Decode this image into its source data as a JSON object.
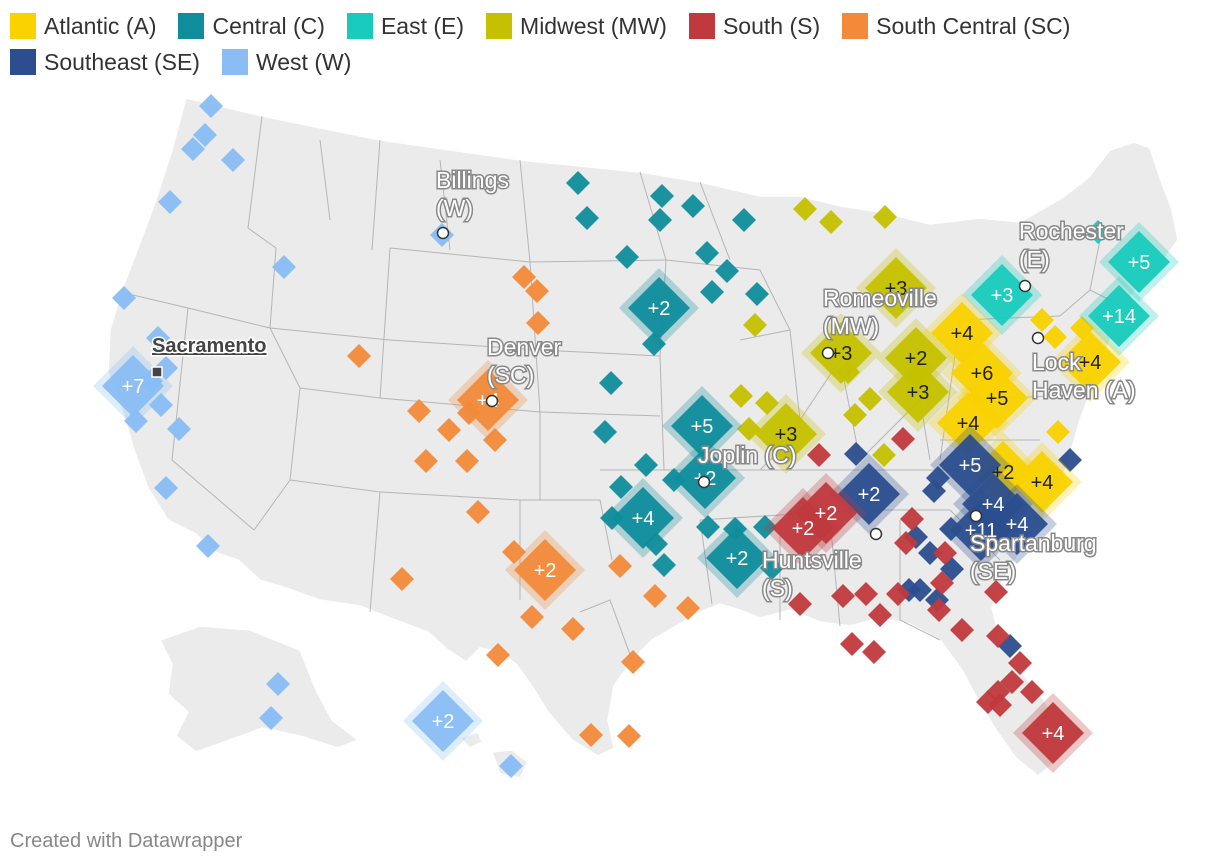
{
  "legend": [
    {
      "label": "Atlantic (A)",
      "color": "#f9d200"
    },
    {
      "label": "Central (C)",
      "color": "#0f8d9c"
    },
    {
      "label": "East (E)",
      "color": "#18cbbc"
    },
    {
      "label": "Midwest (MW)",
      "color": "#c5c100"
    },
    {
      "label": "South (S)",
      "color": "#c0393d"
    },
    {
      "label": "South Central (SC)",
      "color": "#f28a3a"
    },
    {
      "label": "Southeast (SE)",
      "color": "#2c4e8e"
    },
    {
      "label": "West (W)",
      "color": "#89bdf4"
    }
  ],
  "cities": [
    {
      "line1": "Billings",
      "line2": "(W)",
      "marker": "dot"
    },
    {
      "line1": "Sacramento",
      "line2": "",
      "marker": "square",
      "underline": true
    },
    {
      "line1": "Denver",
      "line2": "(SC)",
      "marker": "dot"
    },
    {
      "line1": "Rochester",
      "line2": "(E)",
      "marker": "dot"
    },
    {
      "line1": "Romeoville",
      "line2": "(MW)",
      "marker": "dot"
    },
    {
      "line1": "Lock",
      "line2": "Haven (A)",
      "marker": "dot"
    },
    {
      "line1": "Joplin (C)",
      "line2": "",
      "marker": "dot"
    },
    {
      "line1": "Huntsville",
      "line2": "(S)",
      "marker": "dot"
    },
    {
      "line1": "Spartanburg",
      "line2": "(SE)",
      "marker": "dot"
    }
  ],
  "cluster_markers": [
    {
      "region": "West (W)",
      "label": "+7"
    },
    {
      "region": "West (W)",
      "label": "+2"
    },
    {
      "region": "South Central (SC)",
      "label": "+4"
    },
    {
      "region": "South Central (SC)",
      "label": "+2"
    },
    {
      "region": "Central (C)",
      "label": "+2"
    },
    {
      "region": "Central (C)",
      "label": "+5"
    },
    {
      "region": "Central (C)",
      "label": "+2"
    },
    {
      "region": "Central (C)",
      "label": "+4"
    },
    {
      "region": "Central (C)",
      "label": "+2"
    },
    {
      "region": "Midwest (MW)",
      "label": "+3"
    },
    {
      "region": "Midwest (MW)",
      "label": "+3"
    },
    {
      "region": "Midwest (MW)",
      "label": "+3"
    },
    {
      "region": "Midwest (MW)",
      "label": "+2"
    },
    {
      "region": "Midwest (MW)",
      "label": "+3"
    },
    {
      "region": "East (E)",
      "label": "+3"
    },
    {
      "region": "East (E)",
      "label": "+5"
    },
    {
      "region": "East (E)",
      "label": "+14"
    },
    {
      "region": "Atlantic (A)",
      "label": "+4"
    },
    {
      "region": "Atlantic (A)",
      "label": "+6"
    },
    {
      "region": "Atlantic (A)",
      "label": "+5"
    },
    {
      "region": "Atlantic (A)",
      "label": "+4"
    },
    {
      "region": "Atlantic (A)",
      "label": "+2"
    },
    {
      "region": "Atlantic (A)",
      "label": "+4"
    },
    {
      "region": "Atlantic (A)",
      "label": "+4"
    },
    {
      "region": "Southeast (SE)",
      "label": "+2"
    },
    {
      "region": "Southeast (SE)",
      "label": "+5"
    },
    {
      "region": "Southeast (SE)",
      "label": "+4"
    },
    {
      "region": "Southeast (SE)",
      "label": "+4"
    },
    {
      "region": "Southeast (SE)",
      "label": "+11"
    },
    {
      "region": "South (S)",
      "label": "+2"
    },
    {
      "region": "South (S)",
      "label": "+2"
    },
    {
      "region": "South (S)",
      "label": "+4"
    }
  ],
  "credit": "Created with Datawrapper"
}
